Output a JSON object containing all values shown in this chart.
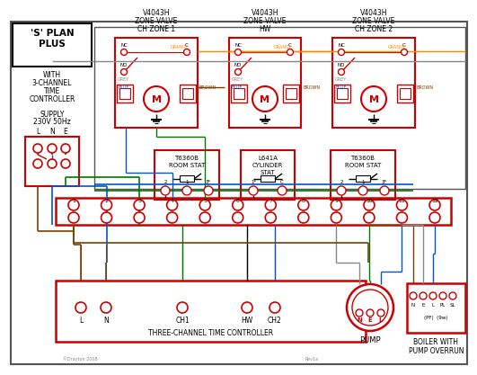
{
  "bg_color": "#ffffff",
  "red": "#cc0000",
  "blue": "#0055cc",
  "green": "#007700",
  "orange": "#ff8800",
  "brown": "#7B3F00",
  "gray": "#888888",
  "dark_gray": "#555555",
  "black": "#000000",
  "zone_valve_titles": [
    "V4043H\nZONE VALVE\nCH ZONE 1",
    "V4043H\nZONE VALVE\nHW",
    "V4043H\nZONE VALVE\nCH ZONE 2"
  ],
  "stat_titles": [
    "T6360B\nROOM STAT",
    "L641A\nCYLINDER\nSTAT",
    "T6360B\nROOM STAT"
  ],
  "controller_label": "THREE-CHANNEL TIME CONTROLLER",
  "pump_label": "PUMP",
  "boiler_label1": "BOILER WITH",
  "boiler_label2": "PUMP OVERRUN",
  "boiler_sub": "(PF)  (9w)"
}
